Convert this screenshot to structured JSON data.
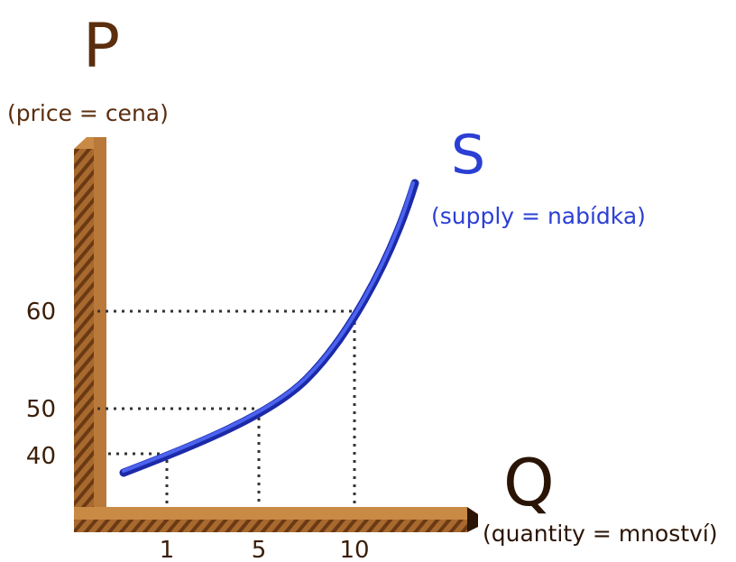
{
  "y_axis": {
    "label": "P",
    "sublabel": "(price = cena)",
    "ticks": [
      60,
      50,
      40
    ]
  },
  "x_axis": {
    "label": "Q",
    "sublabel": "(quantity = mnoství)",
    "ticks": [
      1,
      5,
      10
    ]
  },
  "curve": {
    "label": "S",
    "sublabel": "(supply = nabídka)"
  }
}
